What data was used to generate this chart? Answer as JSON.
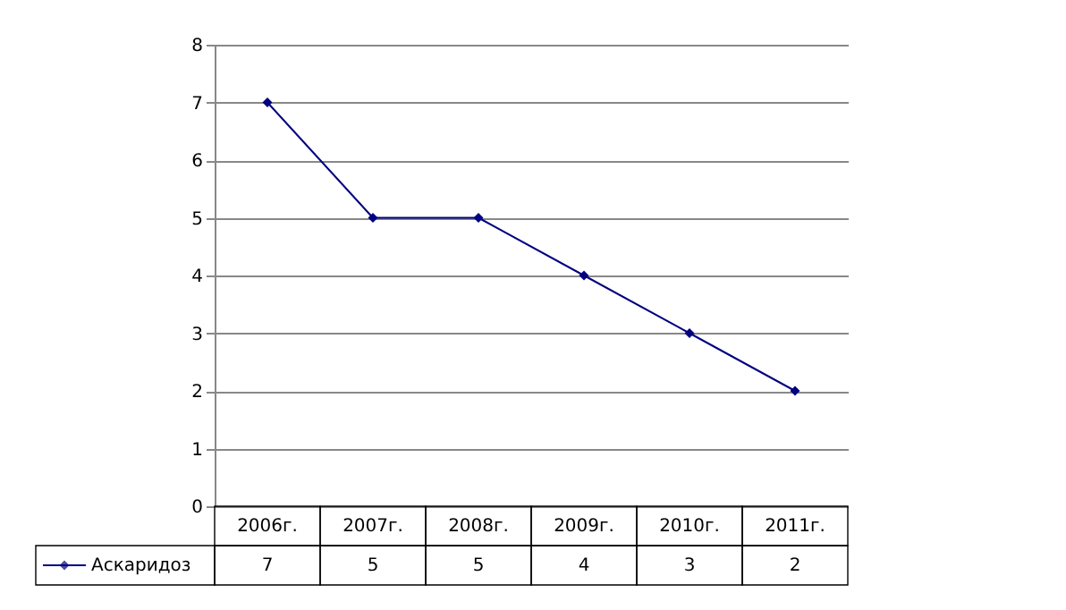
{
  "chart_data": {
    "type": "line",
    "categories": [
      "2006г.",
      "2007г.",
      "2008г.",
      "2009г.",
      "2010г.",
      "2011г."
    ],
    "series": [
      {
        "name": "Аскаридоз",
        "color": "#000080",
        "values": [
          7,
          5,
          5,
          4,
          3,
          2
        ]
      }
    ],
    "ylim": [
      0,
      8
    ],
    "yticks": [
      0,
      1,
      2,
      3,
      4,
      5,
      6,
      7,
      8
    ],
    "grid": "y",
    "marker": "diamond",
    "line_style": "solid",
    "legend": "bottom left",
    "data_labels": true
  }
}
